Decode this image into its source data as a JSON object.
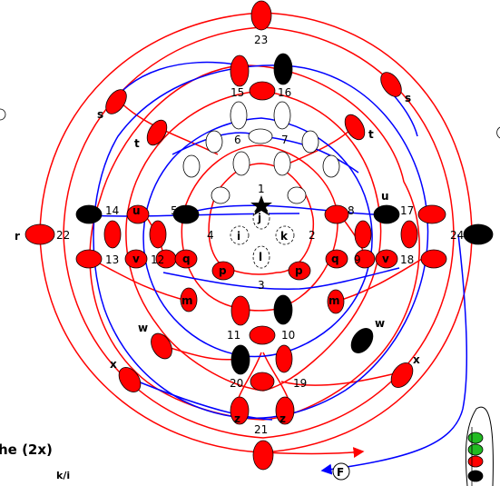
{
  "colors": {
    "red": "#ff0000",
    "blue": "#0000ff",
    "black": "#000000",
    "green": "#22bb22",
    "white": "#ffffff"
  },
  "caption": {
    "line1": "he (2x)",
    "line2": "k/i"
  },
  "finish_label": "F",
  "numbers": [
    "1",
    "2",
    "3",
    "4",
    "5",
    "6",
    "7",
    "8",
    "9",
    "10",
    "11",
    "12",
    "13",
    "14",
    "15",
    "16",
    "17",
    "18",
    "19",
    "20",
    "21",
    "22",
    "23",
    "24"
  ],
  "letters": [
    "j",
    "k",
    "l",
    "i",
    "p",
    "p",
    "q",
    "q",
    "m",
    "m",
    "u",
    "u",
    "v",
    "v",
    "w",
    "w",
    "x",
    "x",
    "s",
    "s",
    "t",
    "t",
    "z",
    "z",
    "r"
  ]
}
